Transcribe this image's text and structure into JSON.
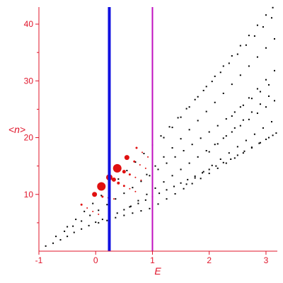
{
  "chart_data": {
    "type": "scatter",
    "title": "",
    "xlabel": "E",
    "ylabel": "<n>",
    "xlim": [
      -1,
      3.2
    ],
    "ylim": [
      0,
      43
    ],
    "grid": false,
    "x_ticks": [
      "-1",
      "0",
      "1",
      "2",
      "3"
    ],
    "y_ticks": [
      "10",
      "20",
      "30",
      "40"
    ],
    "vertical_lines": [
      {
        "x": 0.24,
        "color": "#1010e0"
      },
      {
        "x": 1.0,
        "color": "#c010c0"
      }
    ],
    "series": [
      {
        "color": "#000000",
        "points": [
          [
            -0.88,
            0.9
          ],
          [
            -0.75,
            1.4
          ],
          [
            -0.62,
            2.0
          ],
          [
            -0.5,
            2.6
          ],
          [
            -0.38,
            3.3
          ],
          [
            -0.25,
            3.9
          ],
          [
            -0.12,
            4.5
          ],
          [
            0.0,
            5.1
          ],
          [
            0.12,
            5.6
          ],
          [
            0.25,
            6.2
          ],
          [
            0.38,
            6.7
          ],
          [
            0.5,
            7.3
          ],
          [
            0.62,
            7.9
          ],
          [
            0.75,
            8.4
          ],
          [
            0.88,
            9.0
          ],
          [
            1.0,
            9.6
          ],
          [
            1.12,
            10.2
          ],
          [
            1.25,
            10.8
          ],
          [
            1.38,
            11.4
          ],
          [
            1.5,
            12.0
          ],
          [
            1.62,
            12.6
          ],
          [
            1.75,
            13.2
          ],
          [
            1.88,
            13.8
          ],
          [
            2.0,
            14.4
          ],
          [
            2.12,
            15.0
          ],
          [
            2.25,
            15.6
          ],
          [
            2.38,
            16.2
          ],
          [
            2.5,
            16.9
          ],
          [
            2.62,
            17.6
          ],
          [
            2.75,
            18.3
          ],
          [
            2.88,
            19.0
          ],
          [
            3.0,
            19.7
          ],
          [
            3.12,
            20.4
          ],
          [
            -0.7,
            2.6
          ],
          [
            -0.55,
            3.5
          ],
          [
            -0.4,
            4.4
          ],
          [
            -0.25,
            5.3
          ],
          [
            -0.1,
            6.3
          ],
          [
            0.05,
            7.2
          ],
          [
            0.2,
            8.2
          ],
          [
            0.35,
            9.2
          ],
          [
            0.5,
            10.2
          ],
          [
            0.65,
            11.2
          ],
          [
            0.8,
            12.3
          ],
          [
            0.95,
            13.3
          ],
          [
            1.1,
            14.4
          ],
          [
            1.25,
            15.5
          ],
          [
            1.4,
            16.6
          ],
          [
            1.55,
            17.7
          ],
          [
            1.7,
            18.8
          ],
          [
            1.85,
            19.9
          ],
          [
            2.0,
            21.0
          ],
          [
            2.15,
            22.1
          ],
          [
            2.3,
            23.3
          ],
          [
            2.45,
            24.5
          ],
          [
            2.6,
            25.7
          ],
          [
            2.75,
            26.9
          ],
          [
            2.9,
            28.1
          ],
          [
            3.05,
            29.3
          ],
          [
            -0.5,
            4.3
          ],
          [
            -0.35,
            5.6
          ],
          [
            -0.2,
            7.0
          ],
          [
            -0.05,
            8.4
          ],
          [
            0.1,
            9.8
          ],
          [
            0.25,
            11.2
          ],
          [
            0.4,
            12.7
          ],
          [
            0.55,
            14.2
          ],
          [
            0.7,
            15.7
          ],
          [
            0.85,
            17.2
          ],
          [
            1.0,
            18.7
          ],
          [
            1.15,
            20.3
          ],
          [
            1.3,
            21.9
          ],
          [
            1.45,
            23.5
          ],
          [
            1.6,
            25.1
          ],
          [
            1.75,
            26.7
          ],
          [
            1.9,
            28.3
          ],
          [
            2.05,
            29.9
          ],
          [
            2.2,
            31.5
          ],
          [
            2.35,
            33.1
          ],
          [
            2.5,
            34.7
          ],
          [
            2.65,
            36.3
          ],
          [
            2.8,
            37.9
          ],
          [
            2.95,
            39.5
          ],
          [
            3.1,
            41.1
          ],
          [
            0.05,
            5.0
          ],
          [
            0.2,
            5.4
          ],
          [
            0.35,
            5.9
          ],
          [
            0.5,
            6.3
          ],
          [
            0.65,
            6.7
          ],
          [
            0.8,
            7.1
          ],
          [
            0.95,
            7.5
          ],
          [
            1.1,
            8.3
          ],
          [
            1.25,
            9.2
          ],
          [
            1.4,
            10.1
          ],
          [
            1.55,
            11.0
          ],
          [
            1.7,
            11.9
          ],
          [
            1.85,
            12.8
          ],
          [
            2.0,
            13.7
          ],
          [
            2.15,
            14.6
          ],
          [
            2.3,
            15.5
          ],
          [
            2.45,
            16.4
          ],
          [
            2.6,
            17.3
          ],
          [
            2.75,
            18.2
          ],
          [
            2.9,
            19.1
          ],
          [
            3.05,
            20.0
          ],
          [
            3.18,
            20.8
          ],
          [
            0.6,
            7.8
          ],
          [
            0.75,
            8.9
          ],
          [
            0.9,
            10.0
          ],
          [
            1.05,
            11.1
          ],
          [
            1.2,
            12.2
          ],
          [
            1.35,
            13.3
          ],
          [
            1.5,
            14.4
          ],
          [
            1.65,
            15.5
          ],
          [
            1.8,
            16.6
          ],
          [
            1.95,
            17.7
          ],
          [
            2.1,
            18.8
          ],
          [
            2.25,
            19.9
          ],
          [
            2.4,
            21.0
          ],
          [
            2.55,
            22.1
          ],
          [
            2.7,
            23.2
          ],
          [
            2.85,
            24.3
          ],
          [
            3.0,
            25.4
          ],
          [
            3.15,
            26.5
          ],
          [
            0.9,
            13.5
          ],
          [
            1.05,
            15.0
          ],
          [
            1.2,
            16.6
          ],
          [
            1.35,
            18.2
          ],
          [
            1.5,
            19.8
          ],
          [
            1.65,
            21.4
          ],
          [
            1.8,
            23.0
          ],
          [
            1.95,
            24.6
          ],
          [
            2.1,
            26.2
          ],
          [
            2.25,
            27.8
          ],
          [
            2.4,
            29.4
          ],
          [
            2.55,
            31.0
          ],
          [
            2.7,
            32.6
          ],
          [
            2.85,
            34.2
          ],
          [
            3.0,
            35.8
          ],
          [
            3.15,
            37.4
          ],
          [
            1.2,
            20.0
          ],
          [
            1.35,
            21.8
          ],
          [
            1.5,
            23.6
          ],
          [
            1.65,
            25.4
          ],
          [
            1.8,
            27.2
          ],
          [
            1.95,
            29.0
          ],
          [
            2.1,
            30.8
          ],
          [
            2.25,
            32.6
          ],
          [
            2.4,
            34.4
          ],
          [
            2.55,
            36.2
          ],
          [
            2.7,
            38.0
          ],
          [
            2.85,
            39.8
          ],
          [
            3.0,
            41.6
          ],
          [
            3.12,
            42.9
          ],
          [
            1.6,
            11.8
          ],
          [
            1.75,
            12.9
          ],
          [
            1.9,
            14.0
          ],
          [
            2.05,
            15.1
          ],
          [
            2.2,
            16.2
          ],
          [
            2.35,
            17.3
          ],
          [
            2.5,
            18.4
          ],
          [
            2.65,
            19.5
          ],
          [
            2.8,
            20.6
          ],
          [
            2.95,
            21.7
          ],
          [
            3.1,
            22.8
          ],
          [
            2.0,
            17.5
          ],
          [
            2.15,
            18.9
          ],
          [
            2.3,
            20.3
          ],
          [
            2.45,
            21.7
          ],
          [
            2.6,
            23.1
          ],
          [
            2.75,
            24.5
          ],
          [
            2.9,
            25.9
          ],
          [
            3.05,
            27.3
          ],
          [
            2.4,
            23.8
          ],
          [
            2.55,
            25.4
          ],
          [
            2.7,
            27.0
          ],
          [
            2.85,
            28.6
          ],
          [
            3.0,
            30.2
          ],
          [
            3.15,
            31.8
          ]
        ]
      },
      {
        "color": "#e01010",
        "points": [
          [
            -0.25,
            8.2,
            3
          ],
          [
            -0.15,
            7.6,
            2
          ],
          [
            -0.05,
            7.0,
            2
          ],
          [
            0.05,
            6.5,
            2
          ],
          [
            -0.02,
            10.0,
            7
          ],
          [
            0.12,
            9.6,
            3
          ],
          [
            0.22,
            9.4,
            2
          ],
          [
            0.32,
            9.2,
            2
          ],
          [
            0.1,
            11.4,
            12
          ],
          [
            0.24,
            13.0,
            9
          ],
          [
            0.32,
            12.6,
            6
          ],
          [
            0.4,
            12.0,
            4
          ],
          [
            0.5,
            11.5,
            3
          ],
          [
            0.6,
            11.0,
            2
          ],
          [
            0.7,
            10.5,
            2
          ],
          [
            0.38,
            14.6,
            12
          ],
          [
            0.5,
            14.0,
            5
          ],
          [
            0.6,
            13.5,
            3
          ],
          [
            0.7,
            13.0,
            2
          ],
          [
            0.8,
            12.5,
            2
          ],
          [
            0.55,
            16.5,
            7
          ],
          [
            0.68,
            15.8,
            3
          ],
          [
            0.78,
            15.2,
            2
          ],
          [
            0.88,
            14.6,
            2
          ],
          [
            0.72,
            18.2,
            3
          ],
          [
            0.82,
            17.4,
            2
          ],
          [
            0.92,
            16.6,
            2
          ]
        ]
      }
    ]
  }
}
